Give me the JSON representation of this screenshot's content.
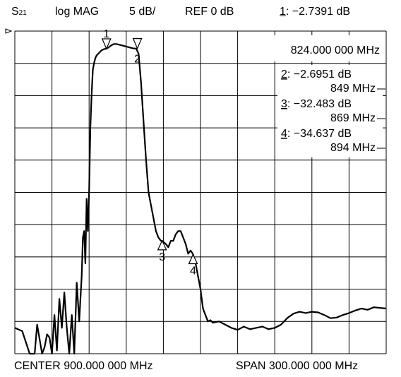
{
  "header": {
    "param_main": "S",
    "param_sub": "21",
    "format": "log MAG",
    "scale": "5 dB/",
    "ref": "REF 0 dB",
    "marker1_num": "1",
    "marker1_value": ": −2.7391 dB"
  },
  "footer": {
    "center": "CENTER 900.000 000 MHz",
    "span": "SPAN 300.000 000 MHz"
  },
  "chart_data": {
    "type": "line",
    "x_unit": "MHz",
    "y_unit": "dB",
    "xlim": [
      750,
      1050
    ],
    "ylim": [
      -50,
      0
    ],
    "grid": true,
    "reference_level": 0,
    "markers": [
      {
        "num": "1",
        "label": "1",
        "x": 824,
        "y": -2.7391,
        "readout_value": ": −2.7391 dB",
        "readout_freq": "824.000 000 MHz"
      },
      {
        "num": "2",
        "label": "2",
        "x": 849,
        "y": -2.6951,
        "readout_value": ": −2.6951 dB",
        "readout_freq": "849 MHz"
      },
      {
        "num": "3",
        "label": "3",
        "x": 869,
        "y": -32.483,
        "readout_value": ": −32.483 dB",
        "readout_freq": "869 MHz"
      },
      {
        "num": "4",
        "label": "4",
        "x": 894,
        "y": -34.637,
        "readout_value": ": −34.637 dB",
        "readout_freq": "894 MHz"
      }
    ],
    "series": [
      {
        "x": [
          750,
          756,
          762,
          766,
          768,
          772,
          774,
          776,
          778,
          780,
          782,
          784,
          786,
          788,
          790,
          792,
          794,
          796,
          798,
          800,
          802,
          804,
          805,
          806,
          807,
          808,
          809,
          810,
          811,
          812,
          813,
          814,
          815,
          816,
          818,
          820,
          822,
          824,
          826,
          828,
          830,
          832,
          834,
          836,
          838,
          840,
          842,
          844,
          846,
          848,
          850,
          852,
          854,
          856,
          858,
          860,
          862,
          864,
          866,
          868,
          869,
          872,
          874,
          876,
          878,
          880,
          882,
          884,
          886,
          888,
          890,
          892,
          894,
          896,
          898,
          900,
          902,
          904,
          906,
          908,
          910,
          915,
          920,
          925,
          930,
          935,
          940,
          945,
          950,
          955,
          960,
          965,
          970,
          975,
          980,
          985,
          990,
          995,
          1000,
          1005,
          1010,
          1015,
          1020,
          1025,
          1030,
          1035,
          1040,
          1045,
          1050
        ],
        "y": [
          -46,
          -46.5,
          -50,
          -50,
          -45.5,
          -50,
          -49,
          -47,
          -47.5,
          -50,
          -44,
          -49.5,
          -41.5,
          -46,
          -40.5,
          -46,
          -50,
          -44,
          -50,
          -39,
          -45,
          -38,
          -32,
          -31,
          -36,
          -26,
          -31,
          -25,
          -15,
          -10,
          -6,
          -5,
          -4.2,
          -3.8,
          -3.4,
          -3,
          -2.8,
          -2.74,
          -2.5,
          -2.2,
          -2,
          -2,
          -2.1,
          -2.2,
          -2.3,
          -2.4,
          -2.5,
          -2.6,
          -2.7,
          -2.7,
          -3.5,
          -8,
          -14,
          -20,
          -25,
          -27,
          -29,
          -31,
          -32,
          -32.5,
          -32.5,
          -33,
          -33.5,
          -32.5,
          -32.5,
          -31.5,
          -31,
          -31,
          -32,
          -33,
          -34.5,
          -34,
          -34.6,
          -36,
          -38,
          -40,
          -43,
          -44,
          -45,
          -44.8,
          -45.2,
          -45,
          -45.5,
          -46,
          -46.3,
          -45.8,
          -46.2,
          -46,
          -45.8,
          -46.2,
          -46,
          -45.5,
          -44.5,
          -43.8,
          -43.5,
          -43.7,
          -43.5,
          -43.6,
          -44,
          -44.5,
          -44.4,
          -44,
          -43.7,
          -43.3,
          -43,
          -43.2,
          -42.8,
          -42.9,
          -43
        ]
      }
    ]
  }
}
